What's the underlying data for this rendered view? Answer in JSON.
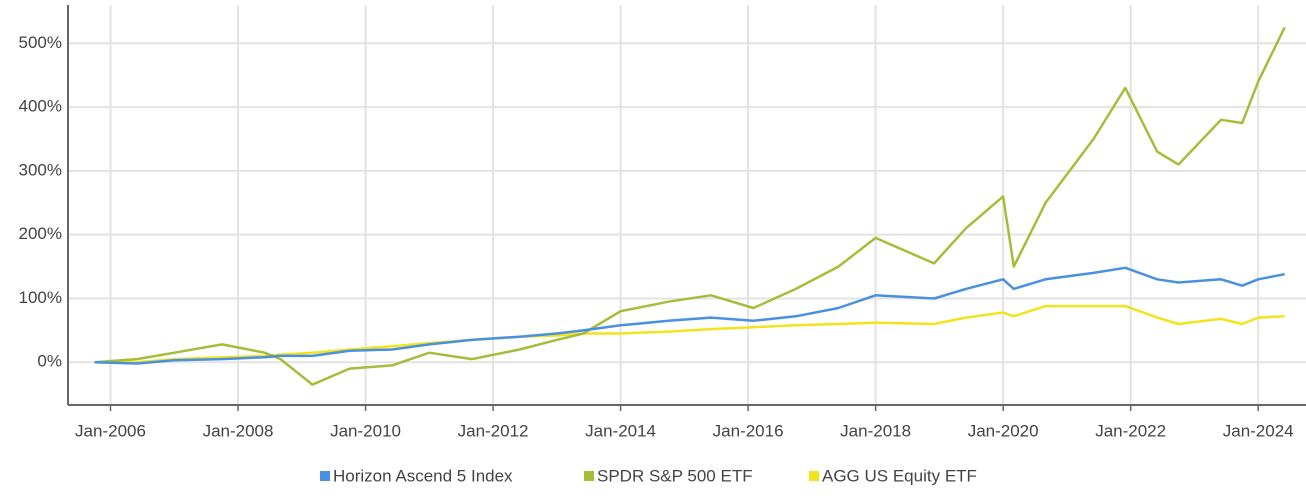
{
  "chart_data": {
    "type": "line",
    "x": [
      "2005-10",
      "2006-06",
      "2007-01",
      "2007-10",
      "2008-06",
      "2008-09",
      "2009-03",
      "2009-10",
      "2010-06",
      "2011-01",
      "2011-09",
      "2012-06",
      "2013-01",
      "2013-06",
      "2014-01",
      "2014-10",
      "2015-06",
      "2016-02",
      "2016-10",
      "2017-06",
      "2018-01",
      "2018-12",
      "2019-06",
      "2020-01",
      "2020-03",
      "2020-09",
      "2021-06",
      "2021-12",
      "2022-06",
      "2022-10",
      "2023-06",
      "2023-10",
      "2024-01",
      "2024-06"
    ],
    "series": [
      {
        "name": "Horizon Ascend 5 Index",
        "color": "#4a90e2",
        "values": [
          0,
          -2,
          3,
          5,
          8,
          10,
          10,
          18,
          20,
          28,
          35,
          40,
          45,
          50,
          58,
          65,
          70,
          65,
          72,
          85,
          105,
          100,
          115,
          130,
          115,
          130,
          140,
          148,
          130,
          125,
          130,
          120,
          130,
          138
        ]
      },
      {
        "name": "SPDR S&P 500 ETF",
        "color": "#a6bd3a",
        "values": [
          0,
          5,
          15,
          28,
          15,
          5,
          -35,
          -10,
          -5,
          15,
          5,
          20,
          35,
          45,
          80,
          95,
          105,
          85,
          115,
          150,
          195,
          155,
          210,
          260,
          150,
          250,
          350,
          430,
          330,
          310,
          380,
          375,
          440,
          525
        ]
      },
      {
        "name": "AGG US Equity ETF",
        "color": "#f2e41c",
        "values": [
          0,
          0,
          5,
          8,
          10,
          12,
          15,
          20,
          25,
          30,
          35,
          40,
          42,
          45,
          45,
          48,
          52,
          55,
          58,
          60,
          62,
          60,
          70,
          78,
          72,
          88,
          88,
          88,
          70,
          60,
          68,
          60,
          70,
          72
        ]
      }
    ],
    "xlim": [
      "2005-05",
      "2024-10"
    ],
    "xticks": [
      {
        "value": "2006-01",
        "label": "Jan-2006"
      },
      {
        "value": "2008-01",
        "label": "Jan-2008"
      },
      {
        "value": "2010-01",
        "label": "Jan-2010"
      },
      {
        "value": "2012-01",
        "label": "Jan-2012"
      },
      {
        "value": "2014-01",
        "label": "Jan-2014"
      },
      {
        "value": "2016-01",
        "label": "Jan-2016"
      },
      {
        "value": "2018-01",
        "label": "Jan-2018"
      },
      {
        "value": "2020-01",
        "label": "Jan-2020"
      },
      {
        "value": "2022-01",
        "label": "Jan-2022"
      },
      {
        "value": "2024-01",
        "label": "Jan-2024"
      }
    ],
    "ylim": [
      -67,
      560
    ],
    "yticks": [
      {
        "value": 0,
        "label": "0%"
      },
      {
        "value": 100,
        "label": "100%"
      },
      {
        "value": 200,
        "label": "200%"
      },
      {
        "value": 300,
        "label": "300%"
      },
      {
        "value": 400,
        "label": "400%"
      },
      {
        "value": 500,
        "label": "500%"
      }
    ],
    "grid": true,
    "legend": "bottom"
  }
}
